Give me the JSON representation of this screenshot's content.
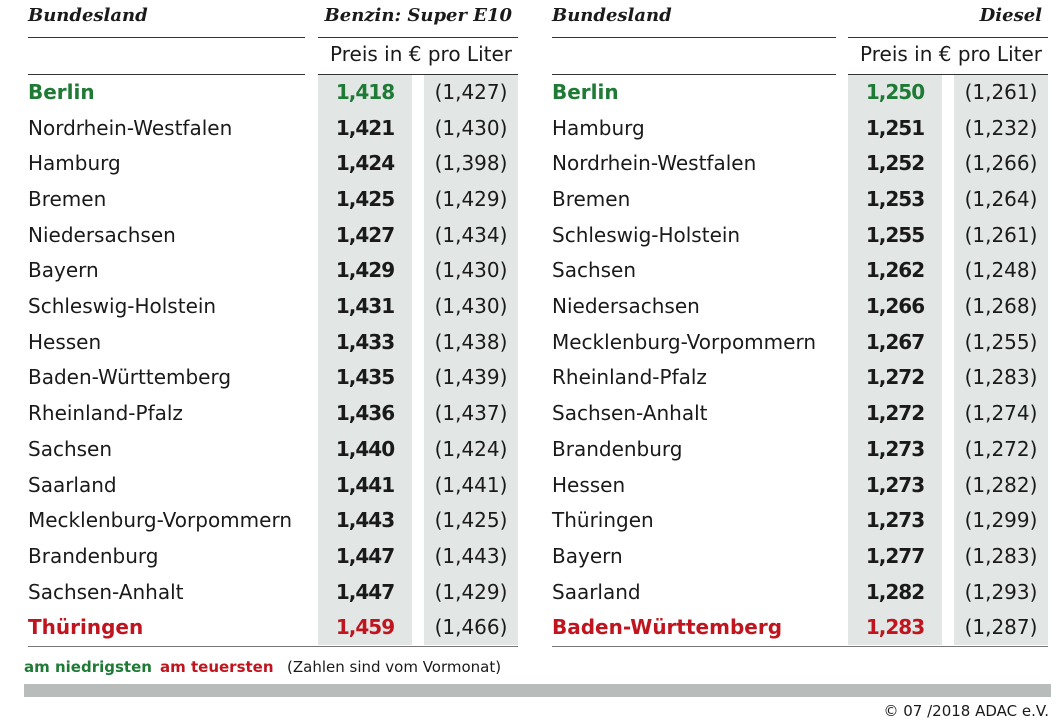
{
  "tables": [
    {
      "header": {
        "region": "Bundesland",
        "fuel": "Benzin: Super E10",
        "unit": "Preis in € pro Liter"
      },
      "rows": [
        [
          "Berlin",
          "1,418",
          "(1,427)"
        ],
        [
          "Nordrhein-Westfalen",
          "1,421",
          "(1,430)"
        ],
        [
          "Hamburg",
          "1,424",
          "(1,398)"
        ],
        [
          "Bremen",
          "1,425",
          "(1,429)"
        ],
        [
          "Niedersachsen",
          "1,427",
          "(1,434)"
        ],
        [
          "Bayern",
          "1,429",
          "(1,430)"
        ],
        [
          "Schleswig-Holstein",
          "1,431",
          "(1,430)"
        ],
        [
          "Hessen",
          "1,433",
          "(1,438)"
        ],
        [
          "Baden-Württemberg",
          "1,435",
          "(1,439)"
        ],
        [
          "Rheinland-Pfalz",
          "1,436",
          "(1,437)"
        ],
        [
          "Sachsen",
          "1,440",
          "(1,424)"
        ],
        [
          "Saarland",
          "1,441",
          "(1,441)"
        ],
        [
          "Mecklenburg-Vorpommern",
          "1,443",
          "(1,425)"
        ],
        [
          "Brandenburg",
          "1,447",
          "(1,443)"
        ],
        [
          "Sachsen-Anhalt",
          "1,447",
          "(1,429)"
        ],
        [
          "Thüringen",
          "1,459",
          "(1,466)"
        ]
      ]
    },
    {
      "header": {
        "region": "Bundesland",
        "fuel": "Diesel",
        "unit": "Preis in € pro Liter"
      },
      "rows": [
        [
          "Berlin",
          "1,250",
          "(1,261)"
        ],
        [
          "Hamburg",
          "1,251",
          "(1,232)"
        ],
        [
          "Nordrhein-Westfalen",
          "1,252",
          "(1,266)"
        ],
        [
          "Bremen",
          "1,253",
          "(1,264)"
        ],
        [
          "Schleswig-Holstein",
          "1,255",
          "(1,261)"
        ],
        [
          "Sachsen",
          "1,262",
          "(1,248)"
        ],
        [
          "Niedersachsen",
          "1,266",
          "(1,268)"
        ],
        [
          "Mecklenburg-Vorpommern",
          "1,267",
          "(1,255)"
        ],
        [
          "Rheinland-Pfalz",
          "1,272",
          "(1,283)"
        ],
        [
          "Sachsen-Anhalt",
          "1,272",
          "(1,274)"
        ],
        [
          "Brandenburg",
          "1,273",
          "(1,272)"
        ],
        [
          "Hessen",
          "1,273",
          "(1,282)"
        ],
        [
          "Thüringen",
          "1,273",
          "(1,299)"
        ],
        [
          "Bayern",
          "1,277",
          "(1,283)"
        ],
        [
          "Saarland",
          "1,282",
          "(1,293)"
        ],
        [
          "Baden-Württemberg",
          "1,283",
          "(1,287)"
        ]
      ]
    }
  ],
  "legend": {
    "lowest": "am niedrigsten",
    "highest": "am teuersten",
    "note": "(Zahlen sind vom Vormonat)"
  },
  "footer": "© 07 /2018 ADAC e.V."
}
